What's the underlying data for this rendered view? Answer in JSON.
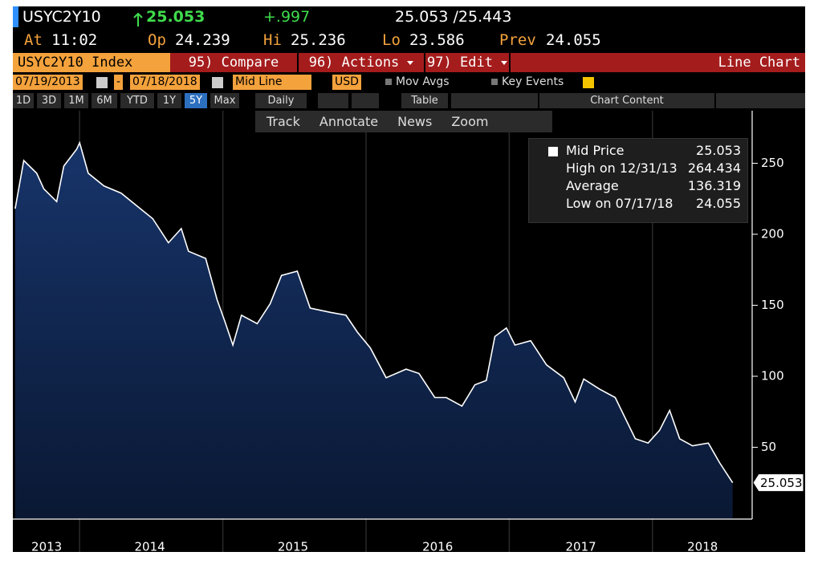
{
  "header": {
    "ticker": "USYC2Y10",
    "last": "25.053",
    "change": "+.997",
    "bid_ask": "25.053 /25.443",
    "stats": [
      {
        "label": "At",
        "value": "11:02"
      },
      {
        "label": "Op",
        "value": "24.239"
      },
      {
        "label": "Hi",
        "value": "25.236"
      },
      {
        "label": "Lo",
        "value": "23.586"
      },
      {
        "label": "Prev",
        "value": "24.055"
      }
    ]
  },
  "toolbar": {
    "security": "USYC2Y10 Index",
    "compare": "95) Compare",
    "actions": "96) Actions",
    "edit": "97) Edit",
    "chart_type": "Line Chart"
  },
  "controls": {
    "start_date": "07/19/2013",
    "dash": "-",
    "end_date": "07/18/2018",
    "price_type": "Mid Line",
    "currency": "USD",
    "mov_avgs": "Mov Avgs",
    "key_events": "Key Events"
  },
  "periods": [
    "1D",
    "3D",
    "1M",
    "6M",
    "YTD",
    "1Y",
    "5Y",
    "Max"
  ],
  "selected_period": "5Y",
  "frequency": "Daily",
  "table": "Table",
  "chart_content": "Chart Content",
  "chart_tools": [
    "Track",
    "Annotate",
    "News",
    "Zoom"
  ],
  "legend": [
    {
      "label": "Mid Price",
      "value": "25.053"
    },
    {
      "label": "High on 12/31/13",
      "value": "264.434"
    },
    {
      "label": "Average",
      "value": "136.319"
    },
    {
      "label": "Low on 07/17/18",
      "value": "24.055"
    }
  ],
  "chart_data": {
    "type": "line",
    "color": "#ffffff",
    "fill": "#0f2a55",
    "grid": true,
    "x": [
      2013.55,
      2013.61,
      2013.7,
      2013.75,
      2013.84,
      2013.89,
      2013.98,
      2014.0,
      2014.06,
      2014.17,
      2014.29,
      2014.4,
      2014.51,
      2014.62,
      2014.71,
      2014.76,
      2014.88,
      2014.96,
      2015.02,
      2015.07,
      2015.13,
      2015.24,
      2015.33,
      2015.41,
      2015.52,
      2015.61,
      2015.75,
      2015.86,
      2015.94,
      2016.03,
      2016.14,
      2016.28,
      2016.37,
      2016.48,
      2016.56,
      2016.67,
      2016.76,
      2016.84,
      2016.9,
      2016.98,
      2017.04,
      2017.15,
      2017.26,
      2017.38,
      2017.46,
      2017.52,
      2017.63,
      2017.74,
      2017.88,
      2017.97,
      2018.05,
      2018.12,
      2018.19,
      2018.28,
      2018.39,
      2018.47,
      2018.56
    ],
    "values": [
      218,
      252,
      243,
      232,
      223,
      248,
      260,
      264.434,
      243,
      234,
      229,
      220,
      211,
      194,
      204,
      188,
      183,
      154,
      137,
      122,
      143,
      137,
      151,
      171,
      174,
      148,
      145,
      143,
      131,
      120,
      99,
      105,
      102,
      85,
      85,
      79,
      94,
      97,
      128,
      134,
      122,
      125,
      108,
      99,
      82,
      98,
      91,
      85,
      56,
      53,
      62,
      76,
      56,
      51,
      53,
      39,
      25.053
    ],
    "last_label": "25.053",
    "xlim": [
      2013.545,
      2018.685
    ],
    "xticks": [
      2014,
      2015,
      2016,
      2017,
      2018
    ],
    "year_labels": [
      {
        "value": 2013.77,
        "label": "2013"
      },
      {
        "value": 2014.49,
        "label": "2014"
      },
      {
        "value": 2015.49,
        "label": "2015"
      },
      {
        "value": 2016.5,
        "label": "2016"
      },
      {
        "value": 2017.5,
        "label": "2017"
      },
      {
        "value": 2018.35,
        "label": "2018"
      }
    ],
    "ylim": [
      0,
      287
    ],
    "yticks": [
      50,
      100,
      150,
      200,
      250
    ]
  }
}
